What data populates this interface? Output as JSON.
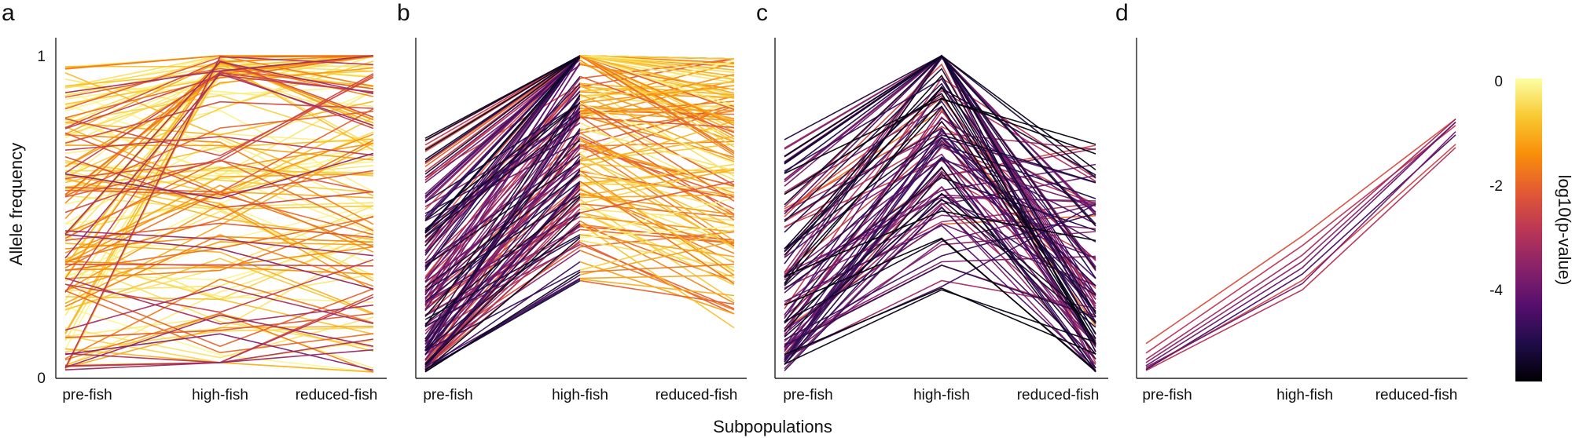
{
  "figure": {
    "ylabel": "Allele frequency",
    "xlabel": "Subpopulations",
    "y_ticks": [
      "0",
      "1"
    ]
  },
  "colorbar": {
    "label": "log10(p-value)",
    "ticks": [
      {
        "value": 0,
        "label": "0"
      },
      {
        "value": -2,
        "label": "-2"
      },
      {
        "value": -4,
        "label": "-4"
      }
    ],
    "range": [
      -5.8,
      0
    ],
    "colormap": "inferno",
    "colors": [
      "#000004",
      "#1f0c48",
      "#550f6d",
      "#88226a",
      "#ba3655",
      "#e35933",
      "#f98e09",
      "#f8c932",
      "#fcffa4"
    ]
  },
  "chart_data": [
    {
      "panel": "a",
      "type": "line",
      "categories": [
        "pre-fish",
        "high-fish",
        "reduced-fish"
      ],
      "ylim": [
        0,
        1
      ],
      "n_lines": 160,
      "description_of_pattern": "many SNP trajectories spanning full range, mostly high p-values"
    },
    {
      "panel": "b",
      "type": "line",
      "categories": [
        "pre-fish",
        "high-fish",
        "reduced-fish"
      ],
      "ylim": [
        0,
        1
      ],
      "n_lines": 150
    },
    {
      "panel": "c",
      "type": "line",
      "categories": [
        "pre-fish",
        "high-fish",
        "reduced-fish"
      ],
      "ylim": [
        0,
        1
      ],
      "n_lines": 110
    },
    {
      "panel": "d",
      "type": "line",
      "categories": [
        "pre-fish",
        "high-fish",
        "reduced-fish"
      ],
      "ylim": [
        0,
        1
      ],
      "series": [
        {
          "values": [
            0.09,
            0.43,
            0.8
          ],
          "logp": -2.4
        },
        {
          "values": [
            0.06,
            0.4,
            0.78
          ],
          "logp": -2.9
        },
        {
          "values": [
            0.04,
            0.37,
            0.8
          ],
          "logp": -3.3
        },
        {
          "values": [
            0.03,
            0.35,
            0.79
          ],
          "logp": -3.6
        },
        {
          "values": [
            0.02,
            0.33,
            0.79
          ],
          "logp": -4.1
        },
        {
          "values": [
            0.01,
            0.29,
            0.72
          ],
          "logp": -2.6
        },
        {
          "values": [
            0.005,
            0.26,
            0.71
          ],
          "logp": -3.0
        },
        {
          "values": [
            0.008,
            0.31,
            0.75
          ],
          "logp": -4.6
        },
        {
          "values": [
            0.015,
            0.28,
            0.76
          ],
          "logp": -3.9
        }
      ]
    }
  ]
}
